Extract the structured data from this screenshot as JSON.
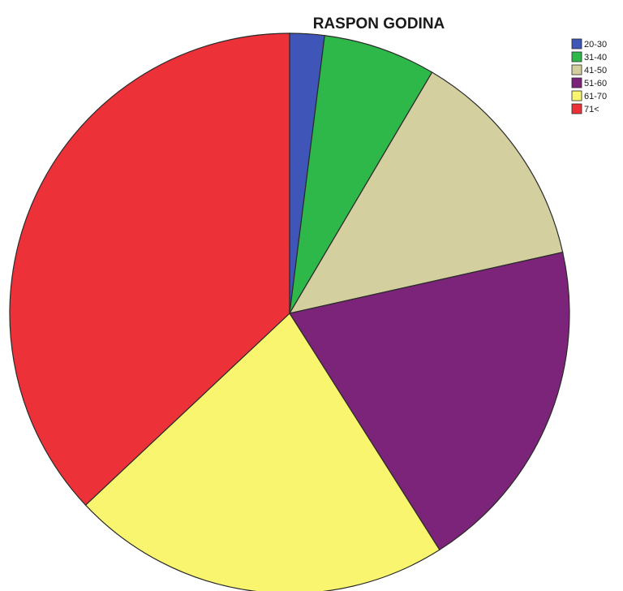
{
  "chart_data": {
    "type": "pie",
    "title": "RASPON GODINA",
    "categories": [
      "20-30",
      "31-40",
      "41-50",
      "51-60",
      "61-70",
      "71<"
    ],
    "values": [
      2.0,
      6.5,
      13.0,
      19.5,
      22.0,
      37.0
    ],
    "unit": "percent (estimated share)",
    "colors": [
      "#3f56b8",
      "#2fb84a",
      "#d4cf9e",
      "#7b2479",
      "#f9f56e",
      "#ed3138"
    ],
    "start": "top",
    "direction": "clockwise",
    "legend_position": "top-right"
  }
}
